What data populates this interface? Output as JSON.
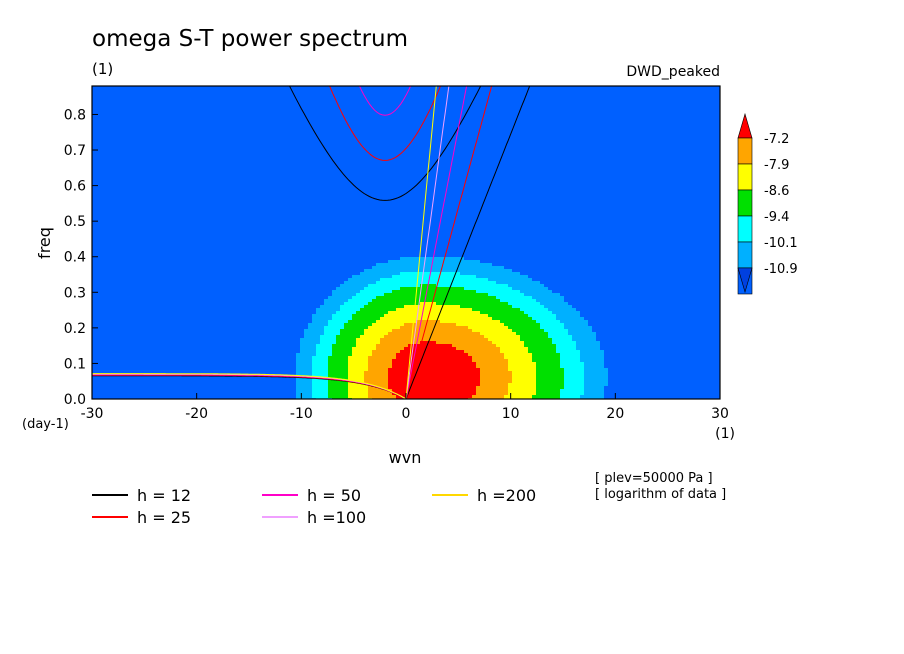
{
  "title": "omega S-T power spectrum",
  "units_label": "(1)",
  "model_label": "DWD_peaked",
  "notes": [
    "[ plev=50000 Pa ]",
    "[ logarithm of data ]"
  ],
  "chart_data": {
    "type": "heatmap",
    "title": "omega S-T power spectrum",
    "xlabel": "wvn",
    "ylabel": "freq",
    "x_unit_label": "(1)",
    "y_unit_label": "(day-1)",
    "xlim": [
      -30,
      30
    ],
    "ylim": [
      0,
      0.88
    ],
    "x_ticks": [
      -30,
      -20,
      -10,
      0,
      10,
      20,
      30
    ],
    "x_tick_labels": [
      "-30",
      "-20",
      "-10",
      "0",
      "10",
      "20",
      "30"
    ],
    "y_ticks": [
      0.0,
      0.1,
      0.2,
      0.3,
      0.4,
      0.5,
      0.6,
      0.7,
      0.8
    ],
    "y_tick_labels": [
      "0.0",
      "0.1",
      "0.2",
      "0.3",
      "0.4",
      "0.5",
      "0.6",
      "0.7",
      "0.8"
    ],
    "colorbar": {
      "levels": [
        -7.2,
        -7.9,
        -8.6,
        -9.4,
        -10.1,
        -10.9
      ],
      "labels": [
        "-7.2",
        "-7.9",
        "-8.6",
        "-9.4",
        "-10.1",
        "-10.9"
      ],
      "colors": [
        "#ff0000",
        "#ffa500",
        "#ffff00",
        "#00e000",
        "#00ffff",
        "#00b0ff",
        "#0060ff",
        "#0040e0"
      ]
    },
    "field": {
      "peak_center": [
        2,
        0.06
      ],
      "scale_x": [
        11,
        15
      ],
      "scale_y": 0.3,
      "levels": [
        -10.9,
        -10.1,
        -9.4,
        -8.6,
        -7.9,
        -7.2
      ],
      "band_colors": [
        "#0060ff",
        "#00b0ff",
        "#00ffff",
        "#00e000",
        "#ffff00",
        "#ffa500",
        "#ff0000"
      ]
    },
    "dispersion_curves": [
      {
        "name": "h = 12",
        "h": 12,
        "color": "#000000"
      },
      {
        "name": "h = 25",
        "h": 25,
        "color": "#ff0000"
      },
      {
        "name": "h = 50",
        "h": 50,
        "color": "#ff00c8"
      },
      {
        "name": "h =100",
        "h": 100,
        "color": "#f0a0ff"
      },
      {
        "name": "h =200",
        "h": 200,
        "color": "#ffff00"
      }
    ],
    "legend": [
      {
        "label": "h = 12",
        "color": "#000000"
      },
      {
        "label": "h = 25",
        "color": "#ff0000"
      },
      {
        "label": "h = 50",
        "color": "#ff00c8"
      },
      {
        "label": "h =100",
        "color": "#f0a0ff"
      },
      {
        "label": "h =200",
        "color": "#ffd800"
      }
    ]
  }
}
